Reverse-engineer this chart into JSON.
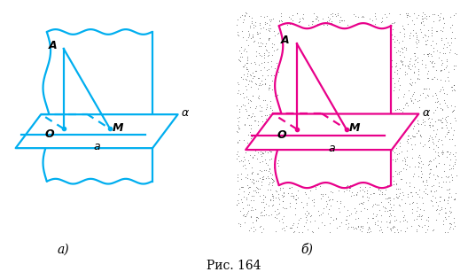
{
  "fig_width": 5.28,
  "fig_height": 3.07,
  "dpi": 100,
  "cyan_color": "#00AEEF",
  "magenta_color": "#E8008A",
  "label_a": "а)",
  "label_b": "б)",
  "caption": "Рис. 164",
  "lw": 1.6
}
